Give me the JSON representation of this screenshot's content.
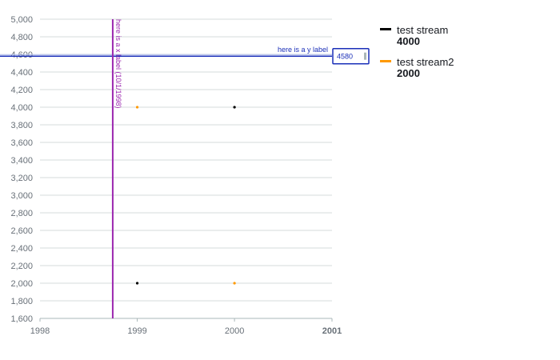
{
  "chart_data": {
    "type": "scatter",
    "x_axis": {
      "type": "date",
      "ticks": [
        "1998",
        "1999",
        "2000",
        "2001"
      ],
      "tick_values": [
        "1998-01-01",
        "1999-01-01",
        "2000-01-01",
        "2001-01-01"
      ],
      "bold_tick": "2001",
      "range": [
        "1998-01-01",
        "2001-01-01"
      ]
    },
    "y_axis": {
      "range": [
        1600,
        5000
      ],
      "ticks": [
        1600,
        1800,
        2000,
        2200,
        2400,
        2600,
        2800,
        3000,
        3200,
        3400,
        3600,
        3800,
        4000,
        4200,
        4400,
        4600,
        4800,
        5000
      ],
      "tick_labels": [
        "1,600",
        "1,800",
        "2,000",
        "2,200",
        "2,400",
        "2,600",
        "2,800",
        "3,000",
        "3,200",
        "3,400",
        "3,600",
        "3,800",
        "4,000",
        "4,200",
        "4,400",
        "4,600",
        "4,800",
        "5,000"
      ],
      "grid": true
    },
    "series": [
      {
        "name": "test stream",
        "color": "#000000",
        "points": [
          {
            "x": "1999-01-01",
            "y": 2000
          },
          {
            "x": "2000-01-01",
            "y": 4000
          }
        ]
      },
      {
        "name": "test stream2",
        "color": "#ff9900",
        "points": [
          {
            "x": "1999-01-01",
            "y": 4000
          },
          {
            "x": "2000-01-01",
            "y": 2000
          }
        ]
      }
    ],
    "x_threshold": {
      "x": "1998-10-01",
      "label": "here is a x label (10/1/1998)",
      "color": "#9c27b0"
    },
    "y_threshold": {
      "y": 4580,
      "label": "here is a y label",
      "value_label": "4580",
      "color": "#1a2fb8"
    },
    "legend": {
      "placement": "right",
      "entries": [
        {
          "name": "test stream",
          "value": "4000",
          "color": "#000000"
        },
        {
          "name": "test stream2",
          "value": "2000",
          "color": "#ff9900"
        }
      ]
    }
  }
}
